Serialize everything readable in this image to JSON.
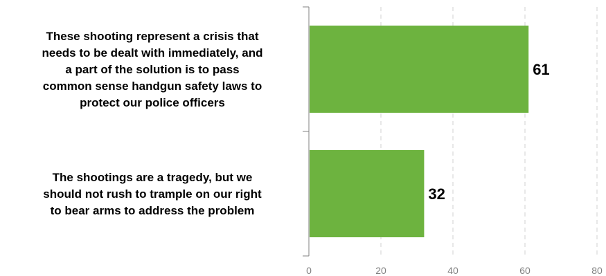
{
  "chart_data": {
    "type": "bar",
    "orientation": "horizontal",
    "categories": [
      "These shooting represent a crisis that needs to be dealt with immediately, and a part of the solution is to pass common sense handgun safety laws to protect our police officers",
      "The shootings are a tragedy, but we should not rush to trample on our right to bear arms to address the problem"
    ],
    "category_lines": [
      [
        "These shooting represent a crisis that",
        "needs to be dealt with immediately, and",
        "a part of the solution is to pass",
        "common sense handgun safety laws to",
        "protect our police officers"
      ],
      [
        "The shootings are a tragedy, but we",
        "should not rush to trample on our right",
        "to bear arms to address the problem"
      ]
    ],
    "values": [
      61,
      32
    ],
    "data_labels": [
      "61",
      "32"
    ],
    "xlim": [
      0,
      80
    ],
    "xticks": [
      0,
      20,
      40,
      60,
      80
    ],
    "xtick_labels": [
      "0",
      "20",
      "40",
      "60",
      "80"
    ],
    "grid": "vertical dashed",
    "legend": "none",
    "title": "",
    "xlabel": "",
    "ylabel": "",
    "bar_color": "#6db33f",
    "grid_color": "#d0d0d0",
    "axis_color": "#808080"
  }
}
